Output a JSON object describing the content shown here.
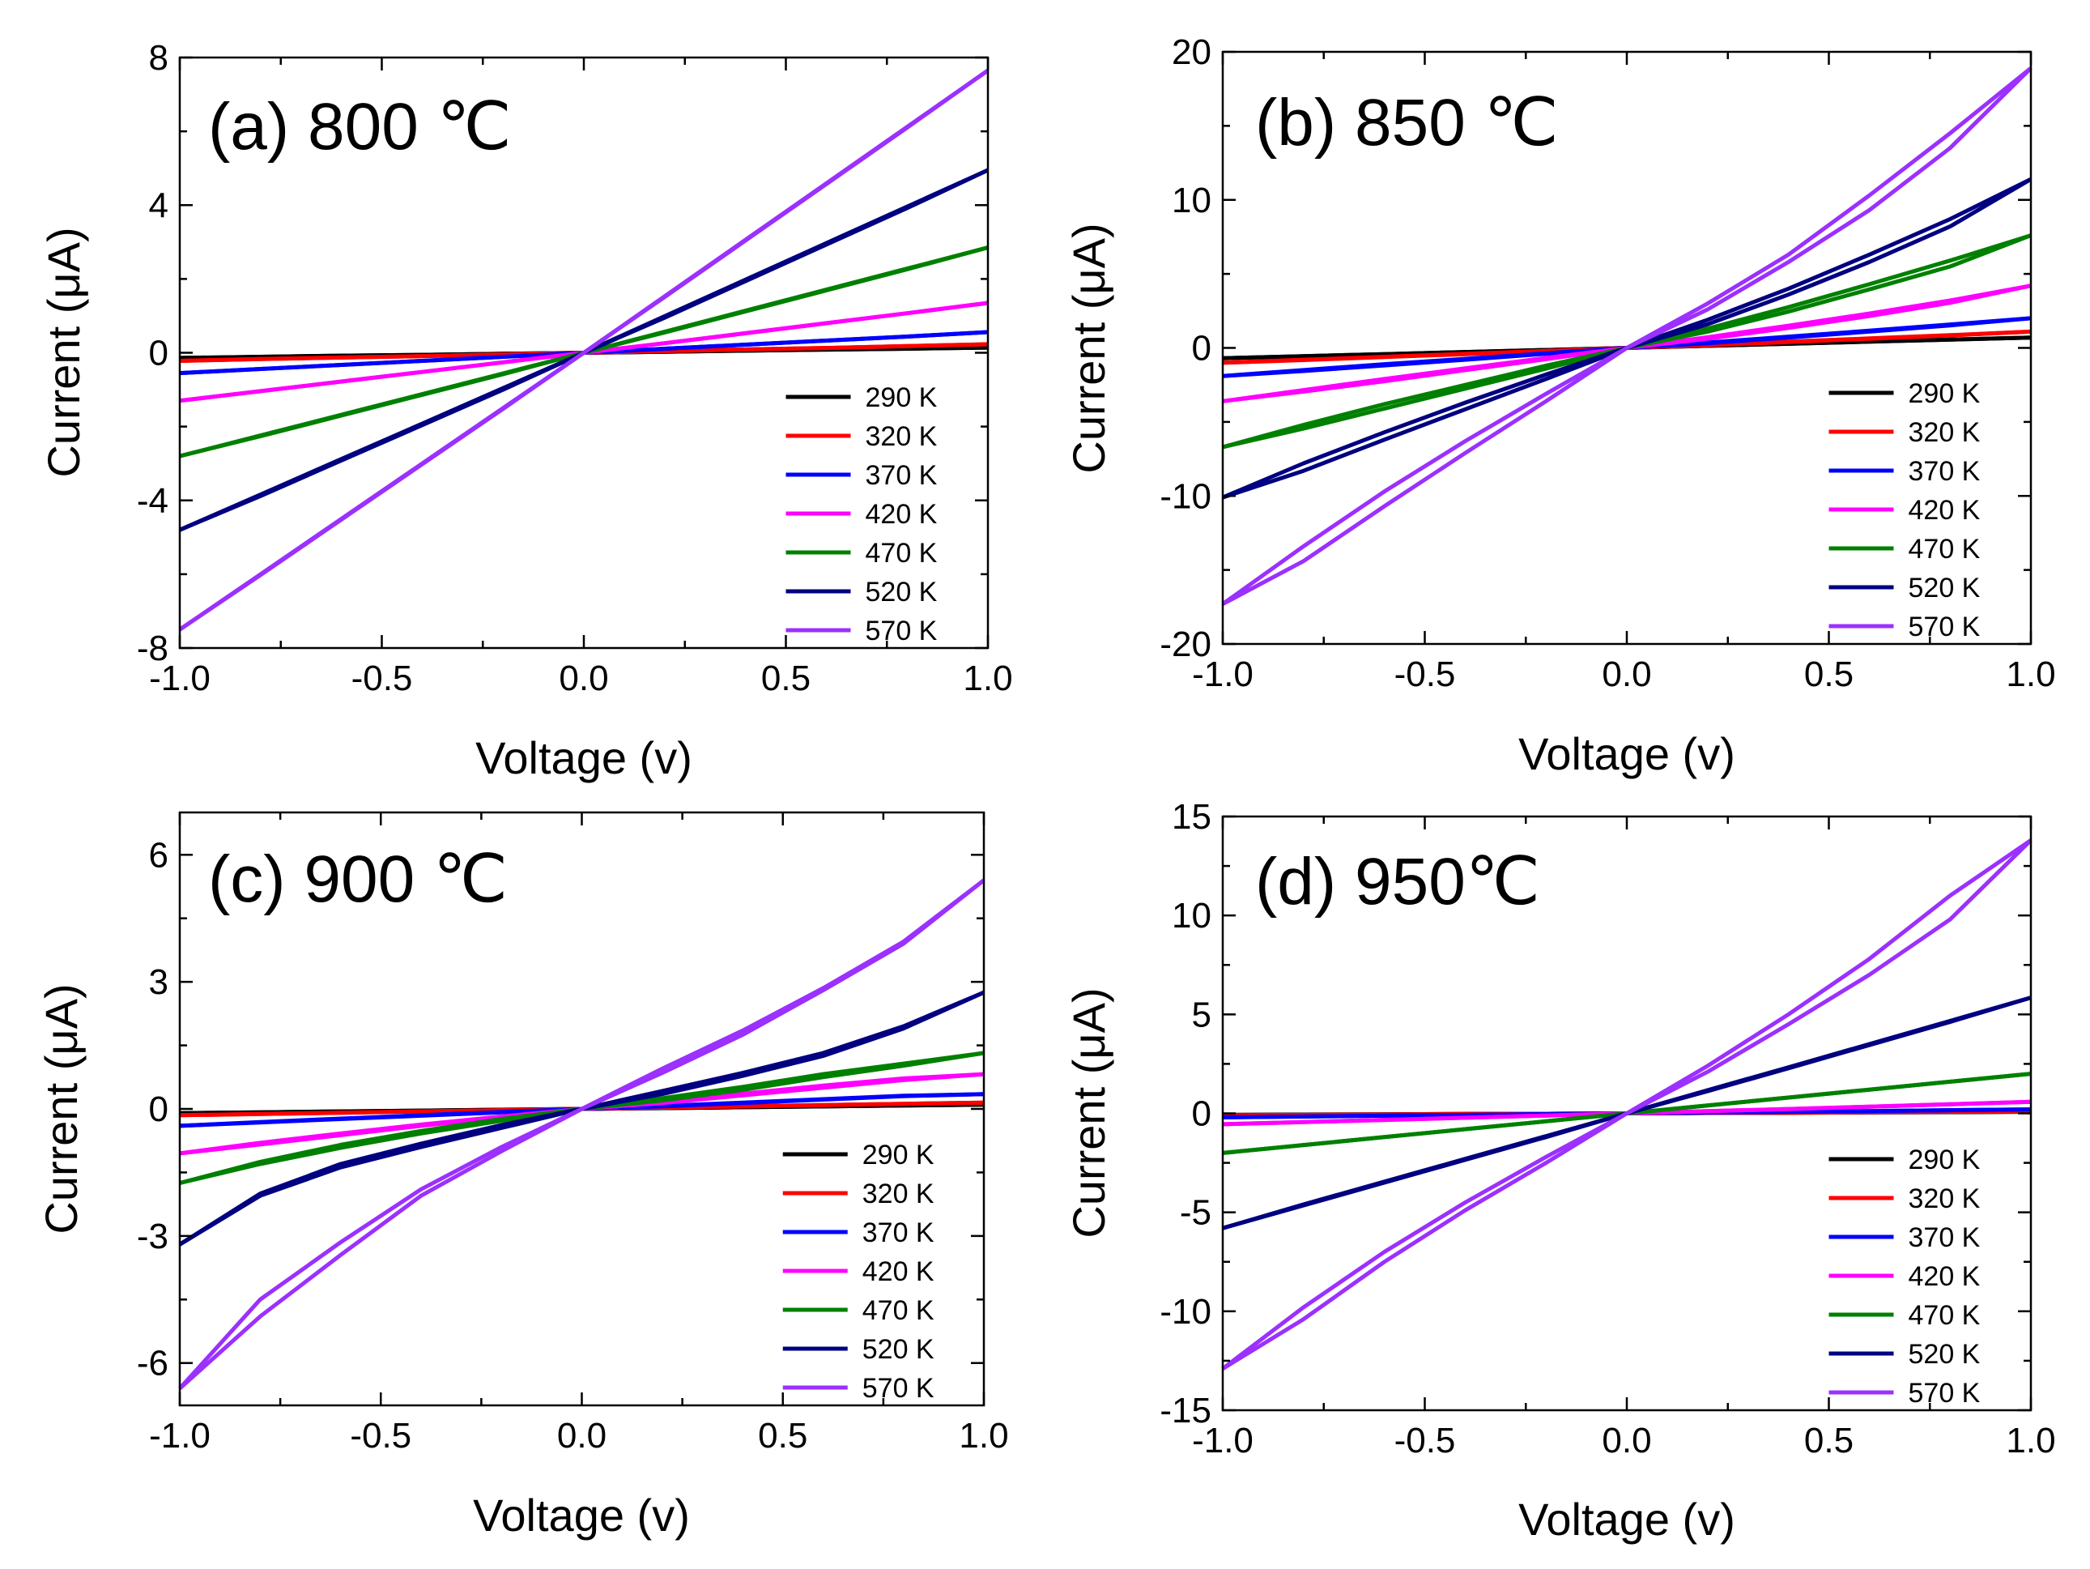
{
  "chart_data": [
    {
      "type": "line",
      "title": "(a) 800 ℃",
      "xlabel": "Voltage (v)",
      "ylabel": "Current (μA)",
      "xlim": [
        -1.0,
        1.0
      ],
      "ylim": [
        -8,
        8
      ],
      "xticks": [
        -1.0,
        -0.5,
        0.0,
        0.5,
        1.0
      ],
      "xtick_labels": [
        "-1.0",
        "-0.5",
        "0.0",
        "0.5",
        "1.0"
      ],
      "yticks": [
        -8,
        -4,
        0,
        4,
        8
      ],
      "ytick_labels": [
        "-8",
        "-4",
        "0",
        "4",
        "8"
      ],
      "legend_position": "lower-right",
      "x": [
        -1.0,
        -0.8,
        -0.6,
        -0.4,
        -0.2,
        0.0,
        0.2,
        0.4,
        0.6,
        0.8,
        1.0
      ],
      "series": [
        {
          "name": "290 K",
          "color": "#000000",
          "sweep_up": [
            -0.14,
            -0.11,
            -0.08,
            -0.056,
            -0.028,
            0,
            0.028,
            0.056,
            0.085,
            0.11,
            0.14
          ],
          "sweep_down": [
            -0.14,
            -0.11,
            -0.08,
            -0.056,
            -0.028,
            0,
            0.028,
            0.056,
            0.085,
            0.11,
            0.14
          ]
        },
        {
          "name": "320 K",
          "color": "#ff0000",
          "sweep_up": [
            -0.22,
            -0.17,
            -0.13,
            -0.09,
            -0.045,
            0,
            0.045,
            0.09,
            0.13,
            0.18,
            0.23
          ],
          "sweep_down": [
            -0.22,
            -0.17,
            -0.13,
            -0.09,
            -0.045,
            0,
            0.045,
            0.09,
            0.13,
            0.18,
            0.23
          ]
        },
        {
          "name": "370 K",
          "color": "#0000ff",
          "sweep_up": [
            -0.55,
            -0.44,
            -0.33,
            -0.22,
            -0.11,
            0,
            0.11,
            0.22,
            0.33,
            0.44,
            0.56
          ],
          "sweep_down": [
            -0.55,
            -0.44,
            -0.33,
            -0.22,
            -0.11,
            0,
            0.11,
            0.22,
            0.33,
            0.44,
            0.56
          ]
        },
        {
          "name": "420 K",
          "color": "#ff00ff",
          "sweep_up": [
            -1.3,
            -1.04,
            -0.78,
            -0.52,
            -0.26,
            0,
            0.26,
            0.53,
            0.8,
            1.07,
            1.35
          ],
          "sweep_down": [
            -1.3,
            -1.04,
            -0.78,
            -0.52,
            -0.26,
            0,
            0.26,
            0.53,
            0.8,
            1.07,
            1.35
          ]
        },
        {
          "name": "470 K",
          "color": "#008000",
          "sweep_up": [
            -2.8,
            -2.24,
            -1.68,
            -1.12,
            -0.56,
            0,
            0.57,
            1.14,
            1.71,
            2.28,
            2.85
          ],
          "sweep_down": [
            -2.8,
            -2.26,
            -1.7,
            -1.14,
            -0.58,
            0,
            0.55,
            1.12,
            1.69,
            2.26,
            2.85
          ]
        },
        {
          "name": "520 K",
          "color": "#000080",
          "sweep_up": [
            -4.8,
            -3.84,
            -2.88,
            -1.92,
            -0.96,
            0,
            0.99,
            1.98,
            2.97,
            3.96,
            4.95
          ],
          "sweep_down": [
            -4.8,
            -3.88,
            -2.92,
            -1.96,
            -1.0,
            0,
            0.95,
            1.94,
            2.93,
            3.92,
            4.95
          ]
        },
        {
          "name": "570 K",
          "color": "#9b30ff",
          "sweep_up": [
            -7.5,
            -6.0,
            -4.5,
            -3.0,
            -1.5,
            0,
            1.53,
            3.06,
            4.59,
            6.12,
            7.65
          ],
          "sweep_down": [
            -7.5,
            -6.02,
            -4.52,
            -3.02,
            -1.52,
            0,
            1.51,
            3.04,
            4.57,
            6.1,
            7.65
          ]
        }
      ]
    },
    {
      "type": "line",
      "title": "(b) 850 ℃",
      "xlabel": "Voltage (v)",
      "ylabel": "Current (μA)",
      "xlim": [
        -1.0,
        1.0
      ],
      "ylim": [
        -20,
        20
      ],
      "xticks": [
        -1.0,
        -0.5,
        0.0,
        0.5,
        1.0
      ],
      "xtick_labels": [
        "-1.0",
        "-0.5",
        "0.0",
        "0.5",
        "1.0"
      ],
      "yticks": [
        -20,
        -10,
        0,
        10,
        20
      ],
      "ytick_labels": [
        "-20",
        "-10",
        "0",
        "10",
        "20"
      ],
      "legend_position": "lower-right",
      "x": [
        -1.0,
        -0.8,
        -0.6,
        -0.4,
        -0.2,
        0.0,
        0.2,
        0.4,
        0.6,
        0.8,
        1.0
      ],
      "series": [
        {
          "name": "290 K",
          "color": "#000000",
          "sweep_up": [
            -0.7,
            -0.56,
            -0.42,
            -0.28,
            -0.14,
            0,
            0.14,
            0.28,
            0.42,
            0.56,
            0.7
          ],
          "sweep_down": [
            -0.7,
            -0.56,
            -0.42,
            -0.28,
            -0.14,
            0,
            0.14,
            0.28,
            0.42,
            0.56,
            0.7
          ]
        },
        {
          "name": "320 K",
          "color": "#ff0000",
          "sweep_up": [
            -1.0,
            -0.8,
            -0.6,
            -0.4,
            -0.2,
            0,
            0.2,
            0.42,
            0.64,
            0.86,
            1.1
          ],
          "sweep_down": [
            -1.0,
            -0.82,
            -0.62,
            -0.42,
            -0.22,
            0,
            0.18,
            0.4,
            0.62,
            0.84,
            1.1
          ]
        },
        {
          "name": "370 K",
          "color": "#0000ff",
          "sweep_up": [
            -1.9,
            -1.5,
            -1.1,
            -0.74,
            -0.36,
            0,
            0.36,
            0.76,
            1.16,
            1.58,
            2.0
          ],
          "sweep_down": [
            -1.9,
            -1.56,
            -1.18,
            -0.8,
            -0.4,
            0,
            0.32,
            0.7,
            1.1,
            1.52,
            2.0
          ]
        },
        {
          "name": "420 K",
          "color": "#ff00ff",
          "sweep_up": [
            -3.6,
            -2.85,
            -2.1,
            -1.38,
            -0.68,
            0,
            0.72,
            1.5,
            2.32,
            3.2,
            4.2
          ],
          "sweep_down": [
            -3.6,
            -2.95,
            -2.25,
            -1.5,
            -0.76,
            0,
            0.62,
            1.35,
            2.15,
            3.05,
            4.2
          ]
        },
        {
          "name": "470 K",
          "color": "#008000",
          "sweep_up": [
            -6.7,
            -5.2,
            -3.8,
            -2.5,
            -1.2,
            0,
            1.3,
            2.75,
            4.3,
            5.9,
            7.6
          ],
          "sweep_down": [
            -6.7,
            -5.45,
            -4.1,
            -2.75,
            -1.4,
            0,
            1.1,
            2.45,
            3.95,
            5.5,
            7.6
          ]
        },
        {
          "name": "520 K",
          "color": "#000080",
          "sweep_up": [
            -10.1,
            -7.8,
            -5.7,
            -3.7,
            -1.8,
            0,
            1.9,
            4.0,
            6.3,
            8.7,
            11.4
          ],
          "sweep_down": [
            -10.1,
            -8.3,
            -6.2,
            -4.15,
            -2.1,
            0,
            1.6,
            3.6,
            5.8,
            8.2,
            11.4
          ]
        },
        {
          "name": "570 K",
          "color": "#9b30ff",
          "sweep_up": [
            -17.3,
            -13.4,
            -9.7,
            -6.3,
            -3.1,
            0,
            3.0,
            6.3,
            10.3,
            14.5,
            18.9
          ],
          "sweep_down": [
            -17.3,
            -14.4,
            -10.7,
            -7.1,
            -3.6,
            0,
            2.6,
            5.8,
            9.3,
            13.5,
            18.9
          ]
        }
      ]
    },
    {
      "type": "line",
      "title": "(c) 900 ℃",
      "xlabel": "Voltage (v)",
      "ylabel": "Current (μA)",
      "xlim": [
        -1.0,
        1.0
      ],
      "ylim": [
        -7,
        7
      ],
      "xticks": [
        -1.0,
        -0.5,
        0.0,
        0.5,
        1.0
      ],
      "xtick_labels": [
        "-1.0",
        "-0.5",
        "0.0",
        "0.5",
        "1.0"
      ],
      "yticks": [
        -6,
        -3,
        0,
        3,
        6
      ],
      "ytick_labels": [
        "-6",
        "-3",
        "0",
        "3",
        "6"
      ],
      "legend_position": "lower-right",
      "x": [
        -1.0,
        -0.8,
        -0.6,
        -0.4,
        -0.2,
        0.0,
        0.2,
        0.4,
        0.6,
        0.8,
        1.0
      ],
      "series": [
        {
          "name": "290 K",
          "color": "#000000",
          "sweep_up": [
            -0.1,
            -0.08,
            -0.06,
            -0.04,
            -0.02,
            0,
            0.02,
            0.04,
            0.06,
            0.08,
            0.1
          ],
          "sweep_down": [
            -0.1,
            -0.08,
            -0.06,
            -0.04,
            -0.02,
            0,
            0.02,
            0.04,
            0.06,
            0.08,
            0.1
          ]
        },
        {
          "name": "320 K",
          "color": "#ff0000",
          "sweep_up": [
            -0.15,
            -0.12,
            -0.09,
            -0.06,
            -0.03,
            0,
            0.03,
            0.06,
            0.09,
            0.12,
            0.15
          ],
          "sweep_down": [
            -0.15,
            -0.12,
            -0.09,
            -0.06,
            -0.03,
            0,
            0.03,
            0.06,
            0.09,
            0.12,
            0.15
          ]
        },
        {
          "name": "370 K",
          "color": "#0000ff",
          "sweep_up": [
            -0.4,
            -0.31,
            -0.23,
            -0.15,
            -0.07,
            0,
            0.07,
            0.15,
            0.23,
            0.31,
            0.35
          ],
          "sweep_down": [
            -0.4,
            -0.32,
            -0.24,
            -0.16,
            -0.08,
            0,
            0.06,
            0.14,
            0.22,
            0.3,
            0.35
          ]
        },
        {
          "name": "420 K",
          "color": "#ff00ff",
          "sweep_up": [
            -1.05,
            -0.8,
            -0.58,
            -0.37,
            -0.18,
            0,
            0.17,
            0.36,
            0.55,
            0.72,
            0.82
          ],
          "sweep_down": [
            -1.05,
            -0.84,
            -0.62,
            -0.4,
            -0.2,
            0,
            0.14,
            0.32,
            0.5,
            0.68,
            0.82
          ]
        },
        {
          "name": "470 K",
          "color": "#008000",
          "sweep_up": [
            -1.75,
            -1.25,
            -0.85,
            -0.52,
            -0.24,
            0,
            0.25,
            0.52,
            0.82,
            1.07,
            1.32
          ],
          "sweep_down": [
            -1.75,
            -1.3,
            -0.92,
            -0.58,
            -0.28,
            0,
            0.2,
            0.45,
            0.75,
            1.02,
            1.32
          ]
        },
        {
          "name": "520 K",
          "color": "#000080",
          "sweep_up": [
            -3.2,
            -2.0,
            -1.3,
            -0.82,
            -0.38,
            0,
            0.42,
            0.85,
            1.32,
            1.95,
            2.75
          ],
          "sweep_down": [
            -3.2,
            -2.05,
            -1.38,
            -0.9,
            -0.45,
            0,
            0.35,
            0.78,
            1.25,
            1.9,
            2.75
          ]
        },
        {
          "name": "570 K",
          "color": "#9b30ff",
          "sweep_up": [
            -6.6,
            -4.5,
            -3.15,
            -1.9,
            -0.9,
            0,
            0.95,
            1.85,
            2.85,
            3.95,
            5.4
          ],
          "sweep_down": [
            -6.6,
            -4.9,
            -3.45,
            -2.05,
            -1.0,
            0,
            0.85,
            1.75,
            2.8,
            3.9,
            5.4
          ]
        }
      ]
    },
    {
      "type": "line",
      "title": "(d) 950℃",
      "xlabel": "Voltage (v)",
      "ylabel": "Current (μA)",
      "xlim": [
        -1.0,
        1.0
      ],
      "ylim": [
        -15,
        15
      ],
      "xticks": [
        -1.0,
        -0.5,
        0.0,
        0.5,
        1.0
      ],
      "xtick_labels": [
        "-1.0",
        "-0.5",
        "0.0",
        "0.5",
        "1.0"
      ],
      "yticks": [
        -15,
        -10,
        -5,
        0,
        5,
        10,
        15
      ],
      "ytick_labels": [
        "-15",
        "-10",
        "-5",
        "0",
        "5",
        "10",
        "15"
      ],
      "legend_position": "lower-right",
      "x": [
        -1.0,
        -0.8,
        -0.6,
        -0.4,
        -0.2,
        0.0,
        0.2,
        0.4,
        0.6,
        0.8,
        1.0
      ],
      "series": [
        {
          "name": "290 K",
          "color": "#000000",
          "sweep_up": [
            -0.08,
            -0.06,
            -0.05,
            -0.03,
            -0.02,
            0,
            0.02,
            0.03,
            0.05,
            0.06,
            0.08
          ],
          "sweep_down": [
            -0.08,
            -0.06,
            -0.05,
            -0.03,
            -0.02,
            0,
            0.02,
            0.03,
            0.05,
            0.06,
            0.08
          ]
        },
        {
          "name": "320 K",
          "color": "#ff0000",
          "sweep_up": [
            -0.1,
            -0.08,
            -0.06,
            -0.04,
            -0.02,
            0,
            0.02,
            0.04,
            0.06,
            0.08,
            0.1
          ],
          "sweep_down": [
            -0.1,
            -0.08,
            -0.06,
            -0.04,
            -0.02,
            0,
            0.02,
            0.04,
            0.06,
            0.08,
            0.1
          ]
        },
        {
          "name": "370 K",
          "color": "#0000ff",
          "sweep_up": [
            -0.2,
            -0.16,
            -0.12,
            -0.08,
            -0.04,
            0,
            0.04,
            0.08,
            0.12,
            0.16,
            0.2
          ],
          "sweep_down": [
            -0.2,
            -0.16,
            -0.12,
            -0.08,
            -0.04,
            0,
            0.04,
            0.08,
            0.12,
            0.16,
            0.2
          ]
        },
        {
          "name": "420 K",
          "color": "#ff00ff",
          "sweep_up": [
            -0.55,
            -0.44,
            -0.33,
            -0.22,
            -0.11,
            0,
            0.11,
            0.22,
            0.34,
            0.46,
            0.58
          ],
          "sweep_down": [
            -0.55,
            -0.44,
            -0.33,
            -0.22,
            -0.11,
            0,
            0.11,
            0.22,
            0.34,
            0.46,
            0.58
          ]
        },
        {
          "name": "470 K",
          "color": "#008000",
          "sweep_up": [
            -2.0,
            -1.6,
            -1.2,
            -0.8,
            -0.4,
            0,
            0.4,
            0.8,
            1.2,
            1.6,
            2.0
          ],
          "sweep_down": [
            -2.0,
            -1.6,
            -1.2,
            -0.8,
            -0.4,
            0,
            0.4,
            0.8,
            1.2,
            1.6,
            2.0
          ]
        },
        {
          "name": "520 K",
          "color": "#000080",
          "sweep_up": [
            -5.8,
            -4.6,
            -3.45,
            -2.3,
            -1.15,
            0,
            1.17,
            2.33,
            3.5,
            4.67,
            5.85
          ],
          "sweep_down": [
            -5.8,
            -4.65,
            -3.5,
            -2.35,
            -1.2,
            0,
            1.12,
            2.28,
            3.45,
            4.62,
            5.85
          ]
        },
        {
          "name": "570 K",
          "color": "#9b30ff",
          "sweep_up": [
            -12.9,
            -9.8,
            -7.0,
            -4.5,
            -2.2,
            0,
            2.4,
            5.0,
            7.8,
            11.0,
            13.8
          ],
          "sweep_down": [
            -12.9,
            -10.4,
            -7.5,
            -4.9,
            -2.5,
            0,
            2.1,
            4.5,
            7.0,
            9.8,
            13.8
          ]
        }
      ]
    }
  ]
}
